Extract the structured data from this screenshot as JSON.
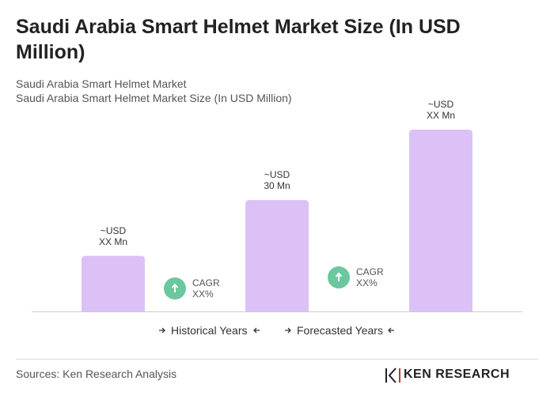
{
  "chart_data": {
    "type": "bar",
    "title": "Saudi Arabia Smart Helmet Market Size (In USD Million)",
    "subtitle": [
      "Saudi Arabia Smart Helmet Market",
      "Saudi Arabia Smart Helmet Market Size (In USD Million)"
    ],
    "values": [
      15,
      30,
      49
    ],
    "value_labels": [
      "~USD\nXX Mn",
      "~USD\n30 Mn",
      "~USD\nXX Mn"
    ],
    "color": "#dcc1f7",
    "annotations": [
      "CAGR\nXX%",
      "CAGR\nXX%"
    ],
    "annotation_color": "#6cc79e",
    "legend": [
      "Historical Years",
      "Forecasted Years"
    ],
    "source": "Sources: Ken Research Analysis",
    "logo": "KEN RESEARCH"
  }
}
